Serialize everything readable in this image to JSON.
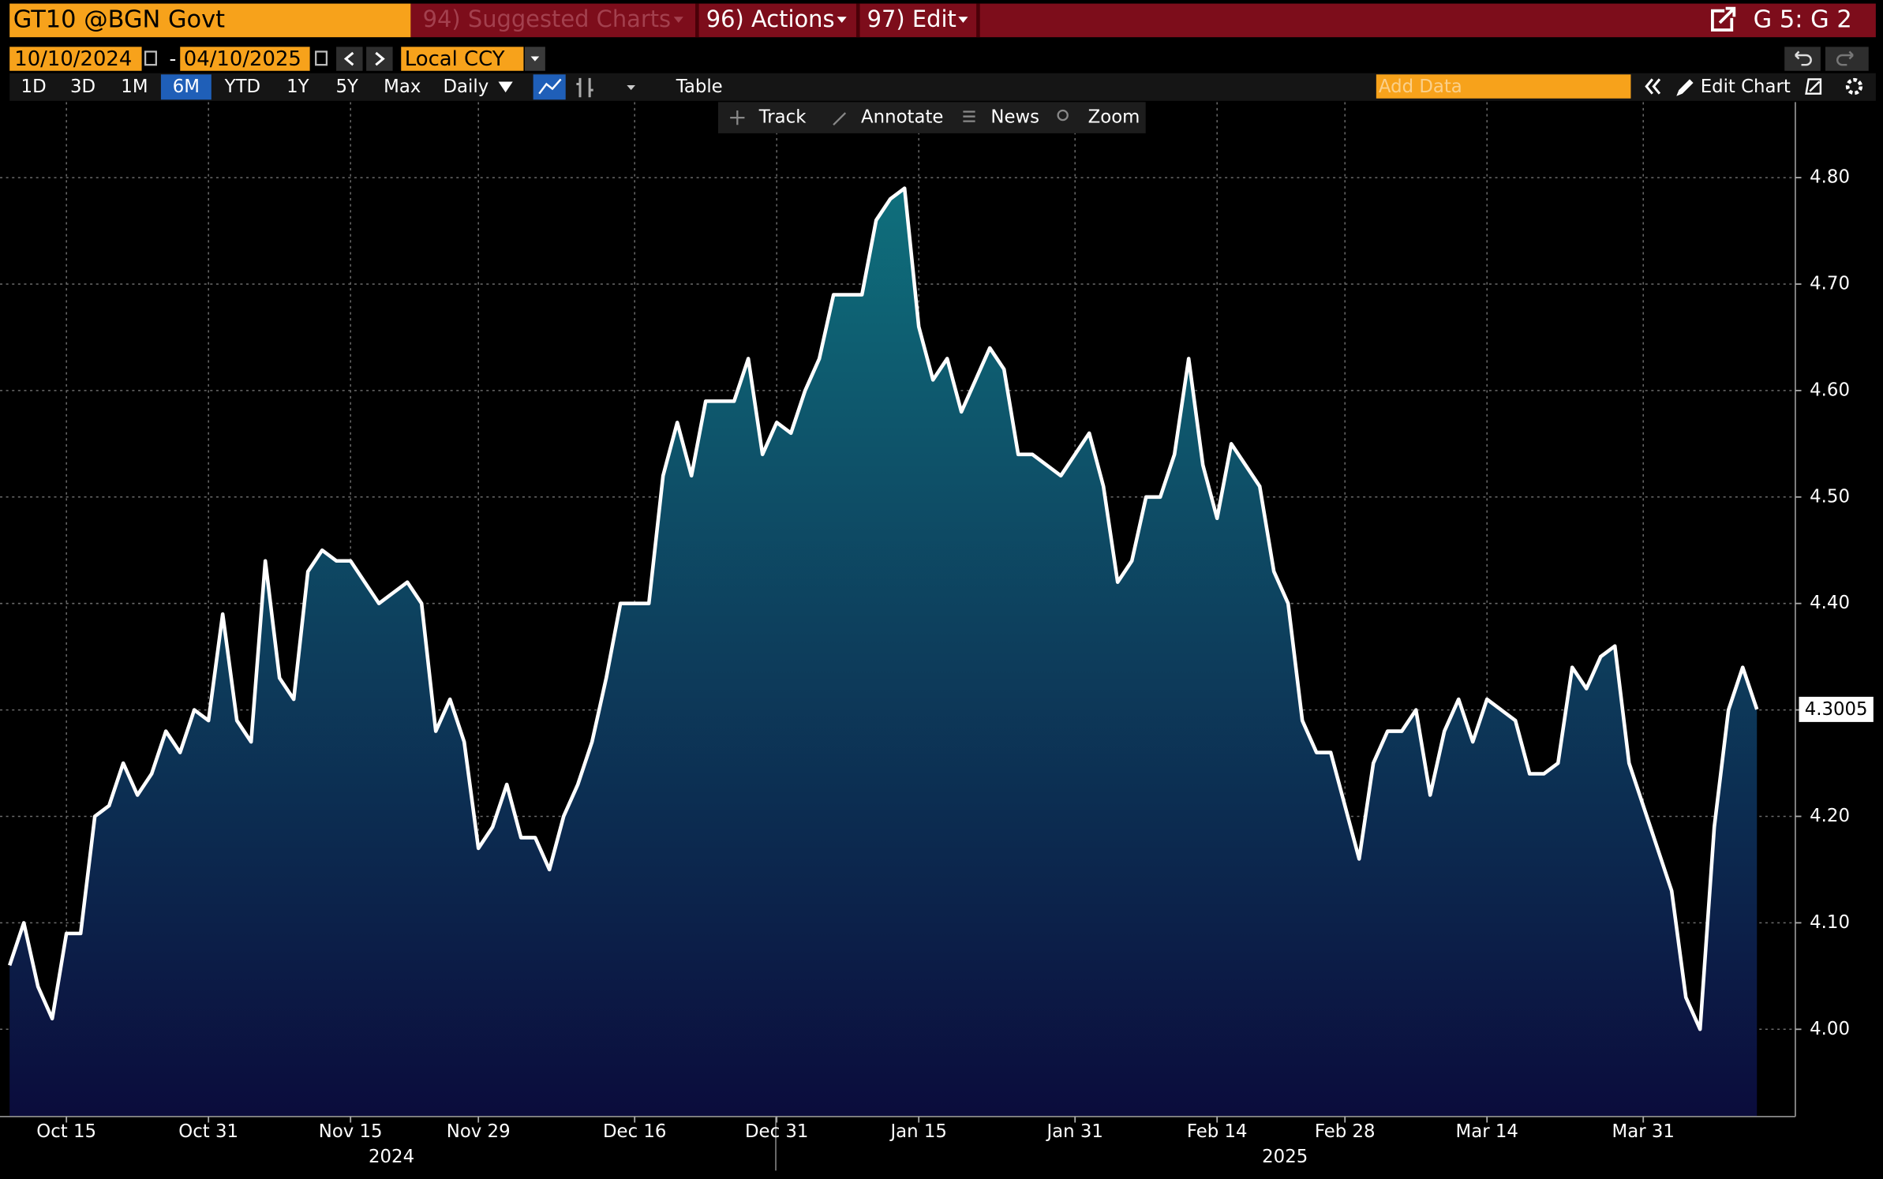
{
  "header": {
    "security": "GT10 @BGN Govt",
    "menus": [
      "94) Suggested Charts",
      "96) Actions",
      "97) Edit"
    ],
    "page": "G 5: G 2"
  },
  "toolbar": {
    "start_date": "10/10/2024",
    "date_separator": "-",
    "end_date": "04/10/2025",
    "currency": "Local CCY",
    "periods": [
      {
        "label": "1D"
      },
      {
        "label": "3D"
      },
      {
        "label": "1M"
      },
      {
        "label": "6M",
        "selected": true
      },
      {
        "label": "YTD"
      },
      {
        "label": "1Y"
      },
      {
        "label": "5Y"
      },
      {
        "label": "Max"
      }
    ],
    "frequency": "Daily",
    "table": "Table",
    "add_data": "Add Data",
    "edit_chart": "Edit Chart"
  },
  "chart_tools": [
    "Track",
    "Annotate",
    "News",
    "Zoom"
  ],
  "chart_data": {
    "type": "area",
    "line_color": "#ffffff",
    "fill_gradient": [
      "#0f6f7c",
      "#0b0c3c"
    ],
    "grid": true,
    "categories": [
      null,
      null,
      null,
      null,
      "Oct 15",
      null,
      null,
      null,
      null,
      null,
      null,
      null,
      null,
      null,
      "Oct 31",
      null,
      null,
      null,
      null,
      null,
      null,
      null,
      null,
      null,
      "Nov 15",
      null,
      null,
      null,
      null,
      null,
      null,
      null,
      null,
      "Nov 29",
      null,
      null,
      null,
      null,
      null,
      null,
      null,
      null,
      null,
      null,
      "Dec 16",
      null,
      null,
      null,
      null,
      null,
      null,
      null,
      null,
      null,
      "Dec 31",
      null,
      null,
      null,
      null,
      null,
      null,
      null,
      null,
      null,
      "Jan 15",
      null,
      null,
      null,
      null,
      null,
      null,
      null,
      null,
      null,
      null,
      "Jan 31",
      null,
      null,
      null,
      null,
      null,
      null,
      null,
      null,
      null,
      "Feb 14",
      null,
      null,
      null,
      null,
      null,
      null,
      null,
      null,
      "Feb 28",
      null,
      null,
      null,
      null,
      null,
      null,
      null,
      null,
      null,
      "Mar 14",
      null,
      null,
      null,
      null,
      null,
      null,
      null,
      null,
      null,
      null,
      "Mar 31",
      null,
      null,
      null,
      null,
      null,
      null,
      null,
      null
    ],
    "x_group_labels": [
      "2024",
      "2025"
    ],
    "values": [
      4.06,
      4.1,
      4.04,
      4.01,
      4.09,
      4.09,
      4.2,
      4.21,
      4.25,
      4.22,
      4.24,
      4.28,
      4.26,
      4.3,
      4.29,
      4.39,
      4.29,
      4.27,
      4.44,
      4.33,
      4.31,
      4.43,
      4.45,
      4.44,
      4.44,
      4.42,
      4.4,
      4.41,
      4.42,
      4.4,
      4.28,
      4.31,
      4.27,
      4.17,
      4.19,
      4.23,
      4.18,
      4.18,
      4.15,
      4.2,
      4.23,
      4.27,
      4.33,
      4.4,
      4.4,
      4.4,
      4.52,
      4.57,
      4.52,
      4.59,
      4.59,
      4.59,
      4.63,
      4.54,
      4.57,
      4.56,
      4.6,
      4.63,
      4.69,
      4.69,
      4.69,
      4.76,
      4.78,
      4.79,
      4.66,
      4.61,
      4.63,
      4.58,
      4.61,
      4.64,
      4.62,
      4.54,
      4.54,
      4.53,
      4.52,
      4.54,
      4.56,
      4.51,
      4.42,
      4.44,
      4.5,
      4.5,
      4.54,
      4.63,
      4.53,
      4.48,
      4.55,
      4.53,
      4.51,
      4.43,
      4.4,
      4.29,
      4.26,
      4.26,
      4.21,
      4.16,
      4.25,
      4.28,
      4.28,
      4.3,
      4.22,
      4.28,
      4.31,
      4.27,
      4.31,
      4.3,
      4.29,
      4.24,
      4.24,
      4.25,
      4.34,
      4.32,
      4.35,
      4.36,
      4.25,
      4.21,
      4.17,
      4.13,
      4.03,
      4.0,
      4.19,
      4.3,
      4.34,
      4.3005
    ],
    "ylim": [
      3.918,
      4.871
    ],
    "yticks": [
      {
        "value": 4.0,
        "label": "4.00"
      },
      {
        "value": 4.1,
        "label": "4.10"
      },
      {
        "value": 4.2,
        "label": "4.20"
      },
      {
        "value": 4.3,
        "label": "4.30"
      },
      {
        "value": 4.4,
        "label": "4.40"
      },
      {
        "value": 4.5,
        "label": "4.50"
      },
      {
        "value": 4.6,
        "label": "4.60"
      },
      {
        "value": 4.7,
        "label": "4.70"
      },
      {
        "value": 4.8,
        "label": "4.80"
      }
    ]
  }
}
